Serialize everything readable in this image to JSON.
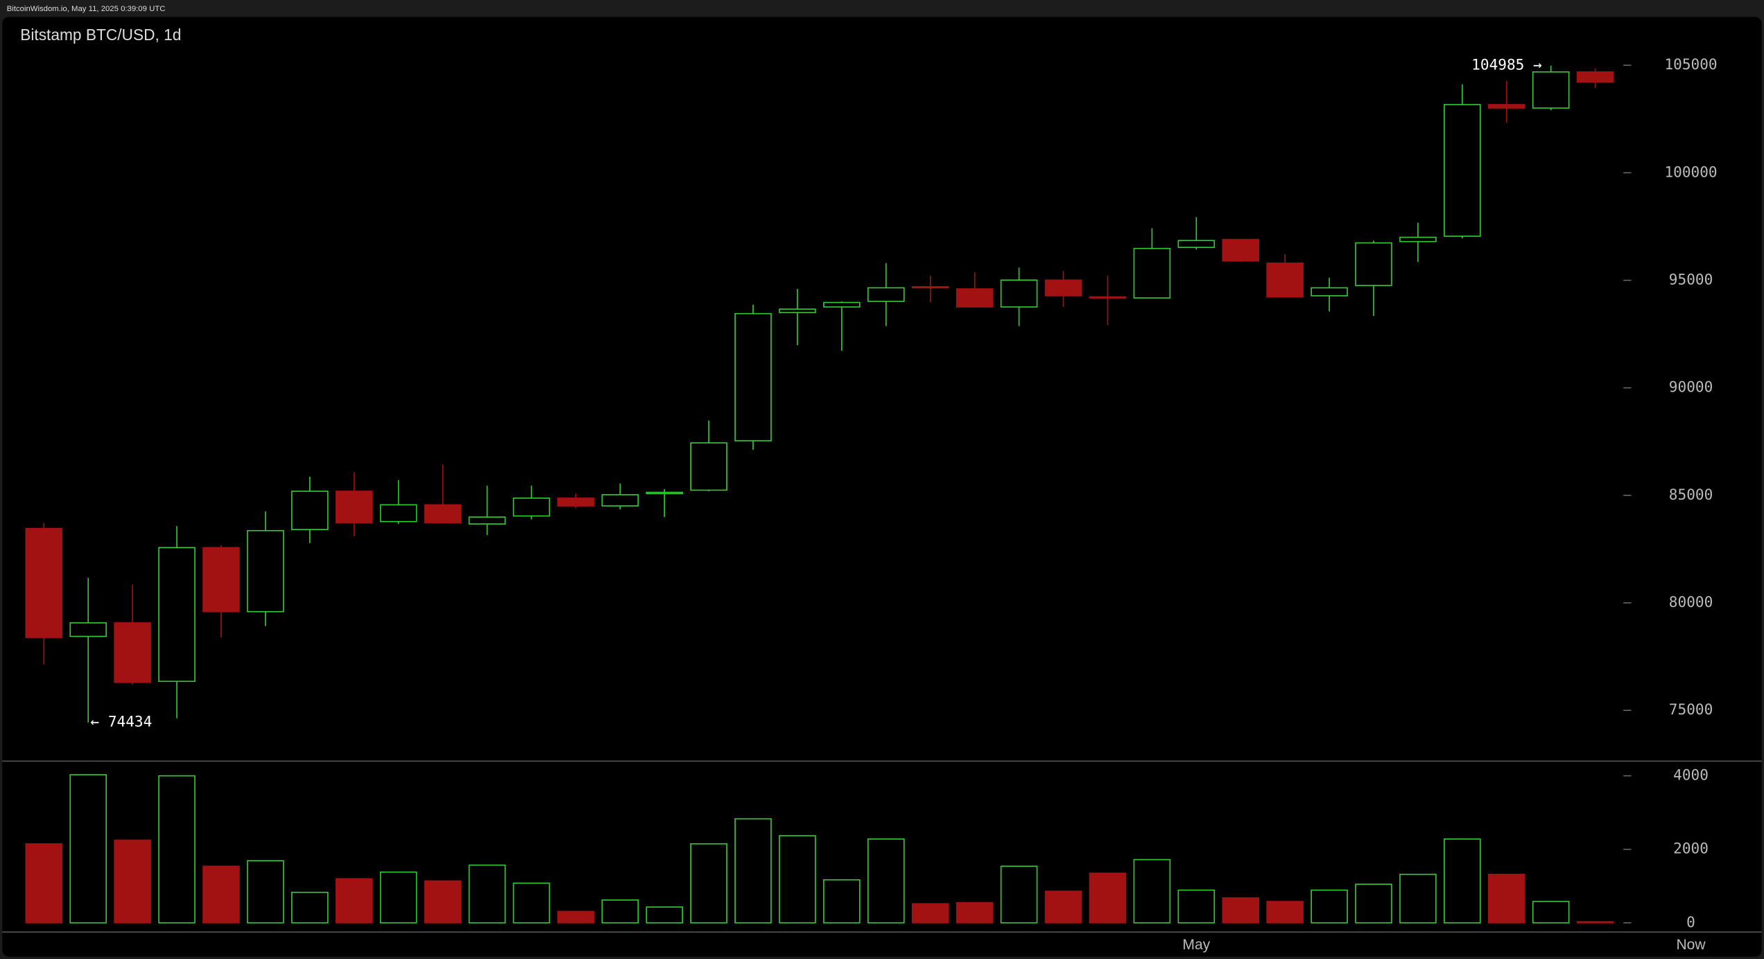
{
  "header": "BitcoinWisdom.io, May 11, 2025 0:39:09 UTC",
  "chart_data": [
    {
      "type": "candlestick",
      "title": "Bitstamp BTC/USD, 1d",
      "categories": [
        null,
        null,
        null,
        null,
        null,
        null,
        null,
        null,
        null,
        null,
        null,
        null,
        null,
        null,
        null,
        null,
        null,
        null,
        null,
        null,
        null,
        null,
        null,
        null,
        null,
        null,
        "May",
        null,
        null,
        null,
        null,
        null,
        null,
        null,
        null,
        null
      ],
      "end_label": "Now",
      "open": [
        83460,
        78440,
        79070,
        76350,
        82570,
        79590,
        83410,
        85190,
        83780,
        84560,
        83670,
        84040,
        84870,
        84510,
        85080,
        85240,
        87540,
        93500,
        93760,
        94020,
        94700,
        94600,
        93760,
        95010,
        94230,
        94180,
        96530,
        96900,
        95800,
        94280,
        94760,
        96800,
        97050,
        103170,
        103010,
        104690
      ],
      "high": [
        83725,
        81160,
        80850,
        83570,
        82680,
        84250,
        85870,
        86080,
        85710,
        86440,
        85450,
        85450,
        85080,
        85550,
        85290,
        88480,
        93870,
        94600,
        94020,
        95800,
        95220,
        95380,
        95590,
        95430,
        95220,
        97420,
        97940,
        96900,
        96220,
        95120,
        96850,
        97680,
        104110,
        104270,
        104985,
        104840
      ],
      "low": [
        77140,
        74434,
        76200,
        74630,
        78390,
        78920,
        82780,
        83100,
        83670,
        83720,
        83150,
        83880,
        84400,
        84350,
        83990,
        85190,
        87120,
        91980,
        91720,
        92870,
        93970,
        93760,
        92870,
        93760,
        92920,
        94180,
        96430,
        95850,
        94230,
        93550,
        93340,
        95850,
        96950,
        102330,
        102910,
        103950
      ],
      "close": [
        78390,
        79070,
        76300,
        82570,
        79590,
        83360,
        85190,
        83720,
        84560,
        83720,
        83990,
        84870,
        84510,
        85030,
        85140,
        87440,
        93450,
        93660,
        93970,
        94650,
        94650,
        93760,
        95010,
        94280,
        94180,
        96480,
        96850,
        95900,
        94230,
        94650,
        96740,
        97000,
        103170,
        103010,
        104690,
        104220
      ],
      "up_color": "#33cc33",
      "down_color": "#a31212",
      "ylim": [
        72640,
        107250
      ],
      "yticks": [
        75000,
        80000,
        85000,
        90000,
        95000,
        100000,
        105000
      ],
      "annotations": [
        {
          "text": "104985 →",
          "value": 104985,
          "index": 34
        },
        {
          "text": "← 74434",
          "value": 74434,
          "index": 1
        }
      ]
    },
    {
      "type": "bar",
      "values": [
        2150,
        4030,
        2250,
        4000,
        1540,
        1690,
        830,
        1200,
        1380,
        1140,
        1570,
        1080,
        310,
        620,
        430,
        2150,
        2830,
        2370,
        1170,
        2280,
        520,
        550,
        1540,
        860,
        1350,
        1720,
        890,
        680,
        580,
        890,
        1050,
        1320,
        2280,
        1320,
        580,
        30
      ],
      "ylim": [
        -250,
        4400
      ],
      "yticks": [
        0,
        2000,
        4000
      ]
    }
  ]
}
